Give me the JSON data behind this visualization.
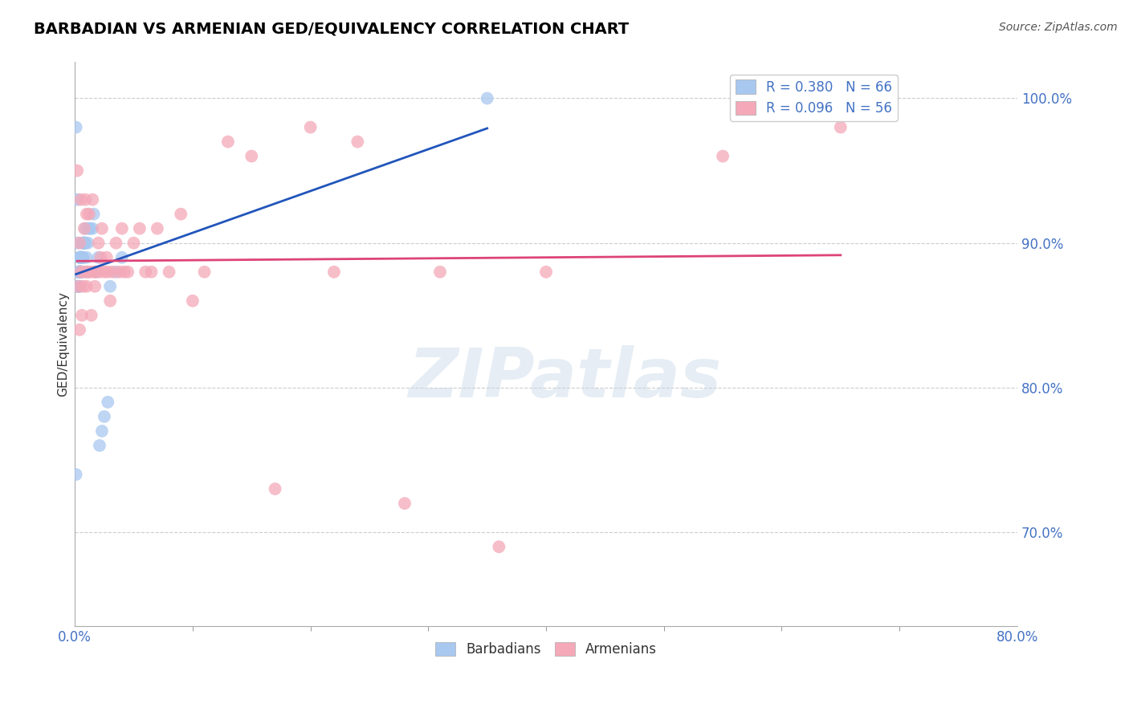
{
  "title": "BARBADIAN VS ARMENIAN GED/EQUIVALENCY CORRELATION CHART",
  "source": "Source: ZipAtlas.com",
  "ylabel": "GED/Equivalency",
  "xlim": [
    0.0,
    0.8
  ],
  "ylim": [
    0.635,
    1.025
  ],
  "right_yticks": [
    1.0,
    0.9,
    0.8,
    0.7
  ],
  "right_ytick_labels": [
    "100.0%",
    "90.0%",
    "80.0%",
    "70.0%"
  ],
  "barbadian_R": 0.38,
  "barbadian_N": 66,
  "armenian_R": 0.096,
  "armenian_N": 56,
  "barbadian_color": "#a8c8f0",
  "armenian_color": "#f4a8b8",
  "trendline_blue": "#2255bb",
  "trendline_pink": "#dd4477",
  "watermark": "ZIPatlas",
  "barbadian_x": [
    0.001,
    0.001,
    0.002,
    0.002,
    0.002,
    0.002,
    0.003,
    0.003,
    0.003,
    0.003,
    0.003,
    0.003,
    0.003,
    0.004,
    0.004,
    0.004,
    0.004,
    0.004,
    0.004,
    0.004,
    0.004,
    0.004,
    0.004,
    0.004,
    0.005,
    0.005,
    0.005,
    0.005,
    0.005,
    0.005,
    0.005,
    0.005,
    0.005,
    0.005,
    0.005,
    0.006,
    0.006,
    0.006,
    0.006,
    0.007,
    0.007,
    0.007,
    0.007,
    0.008,
    0.008,
    0.008,
    0.008,
    0.009,
    0.009,
    0.01,
    0.01,
    0.011,
    0.012,
    0.013,
    0.015,
    0.016,
    0.018,
    0.02,
    0.021,
    0.023,
    0.025,
    0.028,
    0.03,
    0.035,
    0.04,
    0.35
  ],
  "barbadian_y": [
    0.74,
    0.98,
    0.87,
    0.88,
    0.93,
    0.9,
    0.87,
    0.88,
    0.87,
    0.88,
    0.88,
    0.87,
    0.87,
    0.87,
    0.88,
    0.89,
    0.88,
    0.88,
    0.88,
    0.89,
    0.89,
    0.88,
    0.88,
    0.88,
    0.89,
    0.88,
    0.88,
    0.89,
    0.88,
    0.88,
    0.89,
    0.89,
    0.88,
    0.89,
    0.88,
    0.88,
    0.89,
    0.89,
    0.89,
    0.89,
    0.9,
    0.89,
    0.9,
    0.9,
    0.9,
    0.9,
    0.9,
    0.9,
    0.91,
    0.88,
    0.89,
    0.9,
    0.91,
    0.91,
    0.91,
    0.92,
    0.88,
    0.89,
    0.76,
    0.77,
    0.78,
    0.79,
    0.87,
    0.88,
    0.89,
    1.0
  ],
  "armenian_x": [
    0.002,
    0.003,
    0.004,
    0.004,
    0.005,
    0.005,
    0.006,
    0.007,
    0.008,
    0.008,
    0.009,
    0.01,
    0.01,
    0.011,
    0.012,
    0.013,
    0.014,
    0.015,
    0.016,
    0.017,
    0.018,
    0.02,
    0.021,
    0.022,
    0.023,
    0.025,
    0.027,
    0.028,
    0.03,
    0.032,
    0.035,
    0.038,
    0.04,
    0.042,
    0.045,
    0.05,
    0.055,
    0.06,
    0.065,
    0.07,
    0.08,
    0.09,
    0.1,
    0.11,
    0.13,
    0.15,
    0.17,
    0.2,
    0.22,
    0.24,
    0.28,
    0.31,
    0.36,
    0.4,
    0.55,
    0.65
  ],
  "armenian_y": [
    0.95,
    0.87,
    0.84,
    0.9,
    0.93,
    0.88,
    0.85,
    0.87,
    0.88,
    0.91,
    0.93,
    0.87,
    0.92,
    0.88,
    0.92,
    0.88,
    0.85,
    0.93,
    0.88,
    0.87,
    0.88,
    0.9,
    0.88,
    0.89,
    0.91,
    0.88,
    0.89,
    0.88,
    0.86,
    0.88,
    0.9,
    0.88,
    0.91,
    0.88,
    0.88,
    0.9,
    0.91,
    0.88,
    0.88,
    0.91,
    0.88,
    0.92,
    0.86,
    0.88,
    0.97,
    0.96,
    0.73,
    0.98,
    0.88,
    0.97,
    0.72,
    0.88,
    0.69,
    0.88,
    0.96,
    0.98
  ]
}
